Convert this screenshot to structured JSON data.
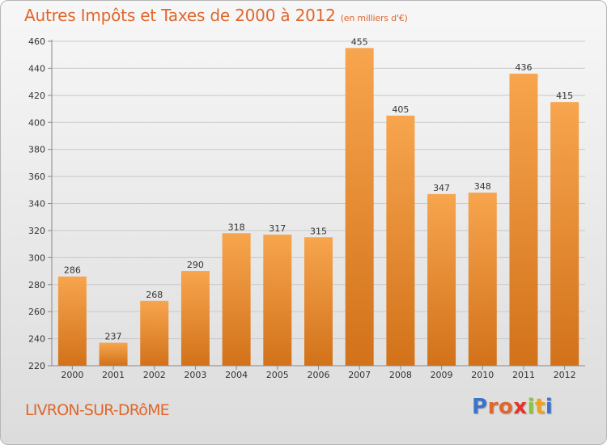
{
  "title": "Autres Impôts et Taxes de 2000 à 2012",
  "subtitle": "(en milliers d'€)",
  "commune": "LIVRON-SUR-DRôME",
  "logo": {
    "text": "Proxiti",
    "letters": [
      {
        "ch": "P",
        "color": "#3a73c9"
      },
      {
        "ch": "r",
        "color": "#e0662c"
      },
      {
        "ch": "o",
        "color": "#e0662c"
      },
      {
        "ch": "x",
        "color": "#e8312a"
      },
      {
        "ch": "i",
        "color": "#8bc53f"
      },
      {
        "ch": "t",
        "color": "#f0a21c"
      },
      {
        "ch": "i",
        "color": "#3a73c9"
      }
    ]
  },
  "chart_data": {
    "type": "bar",
    "title": "Autres Impôts et Taxes de 2000 à 2012",
    "subtitle": "(en milliers d'€)",
    "categories": [
      "2000",
      "2001",
      "2002",
      "2003",
      "2004",
      "2005",
      "2006",
      "2007",
      "2008",
      "2009",
      "2010",
      "2011",
      "2012"
    ],
    "values": [
      286,
      237,
      268,
      290,
      318,
      317,
      315,
      455,
      405,
      347,
      348,
      436,
      415
    ],
    "ylim": [
      220,
      460
    ],
    "yticks": [
      220,
      240,
      260,
      280,
      300,
      320,
      340,
      360,
      380,
      400,
      420,
      440,
      460
    ],
    "grid": true,
    "bar_color_top": "#f7a54e",
    "bar_color_bottom": "#d2721a",
    "xlabel": "",
    "ylabel": ""
  }
}
